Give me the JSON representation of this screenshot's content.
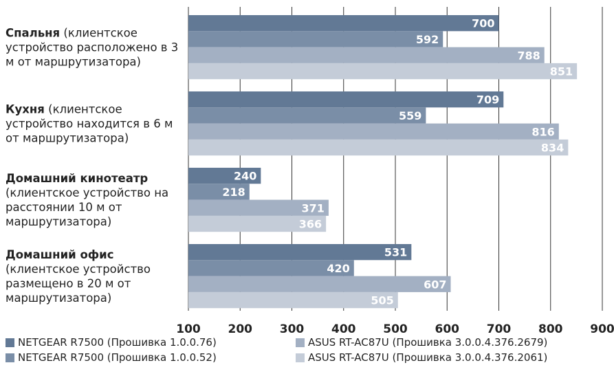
{
  "chart_data": {
    "type": "hbar",
    "categories": [
      "Спальня",
      "Кухня",
      "Домашний кинотеатр",
      "Домашний офис"
    ],
    "category_notes": [
      "(клиентское устройство расположено в 3 м от маршрутизатора)",
      "(клиентское устройство находится в 6 м от маршрутизатора)",
      "(клиентское устройство на расстоянии 10 м от маршрутизатора)",
      "(клиентское устройство размещено в 20 м от маршрутизатора)"
    ],
    "series": [
      {
        "name": "NETGEAR R7500 (Прошивка 1.0.0.76)",
        "color": "#627995",
        "values": [
          700,
          709,
          240,
          531
        ]
      },
      {
        "name": "NETGEAR R7500 (Прошивка 1.0.0.52)",
        "color": "#7a8ea7",
        "values": [
          592,
          559,
          218,
          420
        ]
      },
      {
        "name": "ASUS RT-AC87U (Прошивка 3.0.0.4.376.2679)",
        "color": "#a3b0c3",
        "values": [
          788,
          816,
          371,
          607
        ]
      },
      {
        "name": "ASUS RT-AC87U (Прошивка 3.0.0.4.376.2061)",
        "color": "#c4ccd8",
        "values": [
          851,
          834,
          366,
          505
        ]
      }
    ],
    "xlim": [
      100,
      900
    ],
    "xticks": [
      100,
      200,
      300,
      400,
      500,
      600,
      700,
      800,
      900
    ],
    "grid": true
  }
}
